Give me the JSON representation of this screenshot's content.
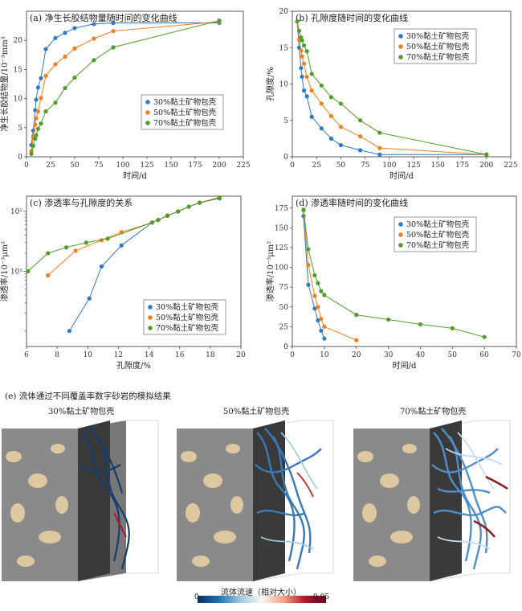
{
  "colors": {
    "s30": "#2e7bc4",
    "s50": "#f07f1e",
    "s70": "#4f9e2a"
  },
  "series_names": [
    "30%黏土矿物包壳",
    "50%黏土矿物包壳",
    "70%黏土矿物包壳"
  ],
  "panels": {
    "a": {
      "title": "(a) 净生长胶结物量随时间的变化曲线",
      "xlabel": "时间/d",
      "ylabel": "净生长胶结物量/10⁻³mm³"
    },
    "b": {
      "title": "(b) 孔隙度随时间的变化曲线",
      "xlabel": "时间/d",
      "ylabel": "孔隙度/%"
    },
    "c": {
      "title": "(c) 渗透率与孔隙度的关系",
      "xlabel": "孔隙度/%",
      "ylabel": "渗透率/10⁻³μm²"
    },
    "d": {
      "title": "(d) 渗透率随时间的变化曲线",
      "xlabel": "时间/d",
      "ylabel": "渗透率/10⁻³μm²"
    },
    "e": {
      "title": "(e) 流体通过不同覆盖率数字砂岩的模拟结果",
      "labels": [
        "30%黏土矿物包壳",
        "50%黏土矿物包壳",
        "70%黏土矿物包壳"
      ],
      "colorbar_title": "流体流速（相对大小）",
      "colorbar_min": "0",
      "colorbar_max": "0.05"
    }
  },
  "chart_data": [
    {
      "id": "a",
      "type": "line",
      "xlim": [
        0,
        225
      ],
      "ylim": [
        0,
        25
      ],
      "xticks": [
        0,
        25,
        50,
        75,
        100,
        125,
        150,
        175,
        200,
        225
      ],
      "yticks": [
        0,
        5,
        10,
        15,
        20
      ],
      "legend": "center-right",
      "series": [
        {
          "name": "30%黏土矿物包壳",
          "x": [
            5,
            7,
            9,
            10,
            12,
            15,
            20,
            30,
            40,
            50,
            70,
            90,
            200
          ],
          "y": [
            2,
            4.5,
            8,
            9.8,
            11.9,
            13.5,
            18.5,
            20.4,
            21.3,
            22.1,
            22.8,
            23,
            23
          ]
        },
        {
          "name": "50%黏土矿物包壳",
          "x": [
            5,
            7,
            9,
            10,
            12,
            15,
            20,
            30,
            40,
            50,
            70,
            90,
            200
          ],
          "y": [
            1,
            3.5,
            5.5,
            6.6,
            7.8,
            10.1,
            13.9,
            15.9,
            17.2,
            18.6,
            20.3,
            21.6,
            23.2
          ]
        },
        {
          "name": "70%黏土矿物包壳",
          "x": [
            5,
            7,
            9,
            10,
            12,
            15,
            20,
            30,
            40,
            50,
            70,
            90,
            200
          ],
          "y": [
            0.5,
            1.9,
            3.1,
            3.7,
            4.8,
            5.7,
            7.8,
            9.3,
            11.8,
            13.6,
            16.6,
            18.8,
            23.4
          ]
        }
      ]
    },
    {
      "id": "b",
      "type": "line",
      "xlim": [
        0,
        225
      ],
      "ylim": [
        0,
        20
      ],
      "xticks": [
        0,
        25,
        50,
        75,
        100,
        125,
        150,
        175,
        200,
        225
      ],
      "yticks": [
        0,
        5,
        10,
        15,
        20
      ],
      "legend": "top-right",
      "series": [
        {
          "name": "30%黏土矿物包壳",
          "x": [
            5,
            7,
            9,
            10,
            12,
            15,
            20,
            30,
            40,
            50,
            70,
            90,
            200
          ],
          "y": [
            18.6,
            15,
            12.2,
            11,
            9.1,
            8.3,
            5.5,
            3.9,
            2.5,
            1.6,
            0.9,
            0.3,
            0.3
          ]
        },
        {
          "name": "50%黏土矿物包壳",
          "x": [
            5,
            7,
            9,
            10,
            12,
            15,
            20,
            30,
            40,
            50,
            70,
            90,
            200
          ],
          "y": [
            18.6,
            16.1,
            14.6,
            13.8,
            12.8,
            11,
            9.1,
            7.3,
            5.6,
            4.1,
            2.8,
            1.2,
            0.3
          ]
        },
        {
          "name": "70%黏土矿物包壳",
          "x": [
            5,
            7,
            9,
            10,
            12,
            15,
            20,
            30,
            40,
            50,
            70,
            90,
            200
          ],
          "y": [
            18.6,
            17.3,
            16.4,
            16,
            15.3,
            14.5,
            11.4,
            9.8,
            8.2,
            7.3,
            5,
            3.3,
            0.3
          ]
        }
      ]
    },
    {
      "id": "c",
      "type": "line",
      "scale_y": "log",
      "xlim": [
        6,
        20
      ],
      "ylim": [
        0.55,
        180
      ],
      "xticks": [
        6,
        8,
        10,
        12,
        14,
        16,
        18,
        20
      ],
      "yticks_labels": [
        {
          "v": 10,
          "t": "10¹"
        },
        {
          "v": 100,
          "t": "10²"
        }
      ],
      "legend": "bottom-right",
      "series": [
        {
          "name": "30%黏土矿物包壳",
          "x": [
            8.8,
            10.1,
            10.9,
            12.2,
            14.2,
            14.6,
            15.2,
            15.9,
            16.6,
            17.3,
            18.6
          ],
          "y": [
            1,
            3.5,
            12,
            27,
            65,
            72,
            85,
            100,
            120,
            140,
            165
          ]
        },
        {
          "name": "50%黏土矿物包壳",
          "x": [
            7.4,
            9.2,
            10.9,
            12.2,
            14.2,
            14.6,
            15.2,
            15.9,
            16.6,
            17.3,
            18.6
          ],
          "y": [
            8.5,
            22,
            33,
            45,
            65,
            72,
            85,
            100,
            120,
            140,
            172
          ]
        },
        {
          "name": "70%黏土矿物包壳",
          "x": [
            6.1,
            7.4,
            8.6,
            9.9,
            11.3,
            14.2,
            14.6,
            15.2,
            15.9,
            16.6,
            17.3,
            18.6
          ],
          "y": [
            10,
            20,
            25,
            30,
            35,
            65,
            72,
            85,
            100,
            120,
            140,
            168
          ]
        }
      ]
    },
    {
      "id": "d",
      "type": "line",
      "xlim": [
        0,
        70
      ],
      "ylim": [
        0,
        190
      ],
      "xticks": [
        0,
        10,
        20,
        30,
        40,
        50,
        60,
        70
      ],
      "yticks": [
        0,
        25,
        50,
        75,
        100,
        125,
        150,
        175
      ],
      "legend": "top-right",
      "series": [
        {
          "name": "30%黏土矿物包壳",
          "x": [
            3.5,
            5,
            7,
            8,
            9,
            10
          ],
          "y": [
            165,
            78,
            48,
            33,
            20,
            10
          ]
        },
        {
          "name": "50%黏土矿物包壳",
          "x": [
            3.5,
            5,
            7,
            8,
            9,
            10,
            20
          ],
          "y": [
            172,
            103,
            64,
            50,
            35,
            25,
            8
          ]
        },
        {
          "name": "70%黏土矿物包壳",
          "x": [
            3.5,
            5,
            7,
            8,
            9,
            10,
            20,
            30,
            40,
            50,
            60
          ],
          "y": [
            173,
            123,
            90,
            80,
            70,
            65,
            40,
            34,
            28,
            23,
            12
          ]
        }
      ]
    }
  ]
}
